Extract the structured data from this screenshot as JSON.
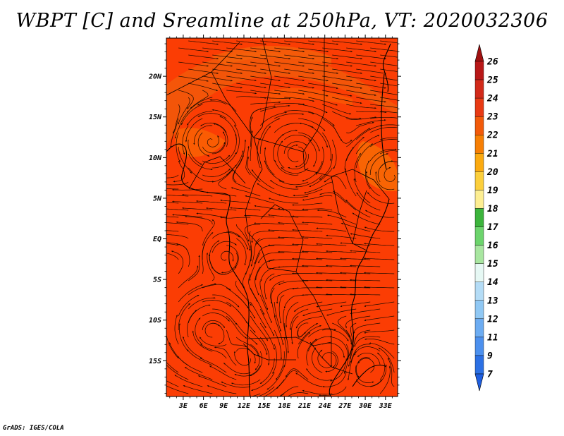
{
  "title": "WBPT [C] and Sreamline at 250hPa, VT: 2020032306",
  "credit": "GrADS: IGES/COLA",
  "map": {
    "lat_labels": [
      "20N",
      "15N",
      "10N",
      "5N",
      "EQ",
      "5S",
      "10S",
      "15S"
    ],
    "lat_values": [
      20,
      15,
      10,
      5,
      0,
      -5,
      -10,
      -15
    ],
    "lon_labels": [
      "3E",
      "6E",
      "9E",
      "12E",
      "15E",
      "18E",
      "21E",
      "24E",
      "27E",
      "30E",
      "33E"
    ],
    "lon_values": [
      3,
      6,
      9,
      12,
      15,
      18,
      21,
      24,
      27,
      30,
      33
    ],
    "lon_range": [
      0.5,
      34.8
    ],
    "lat_range": [
      -19.4,
      24.7
    ],
    "base_color": "#fb3d04",
    "streamline_color": "#1a0a00"
  },
  "colorbar": {
    "labels": [
      "26",
      "25",
      "24",
      "23",
      "22",
      "21",
      "20",
      "19",
      "18",
      "17",
      "16",
      "15",
      "14",
      "13",
      "12",
      "11",
      "9",
      "7"
    ],
    "colors": [
      "#b81818",
      "#d22a1a",
      "#e83a14",
      "#f25a0a",
      "#f77f04",
      "#fbaa10",
      "#fccf3c",
      "#fdee92",
      "#3cb43c",
      "#6cd46c",
      "#a8e6a0",
      "#e6f8f4",
      "#b4dcf6",
      "#90c8f4",
      "#6cacf2",
      "#4c90ee",
      "#2c70e4"
    ],
    "top_arrow_color": "#a01010",
    "bottom_arrow_color": "#1e5ee0"
  }
}
